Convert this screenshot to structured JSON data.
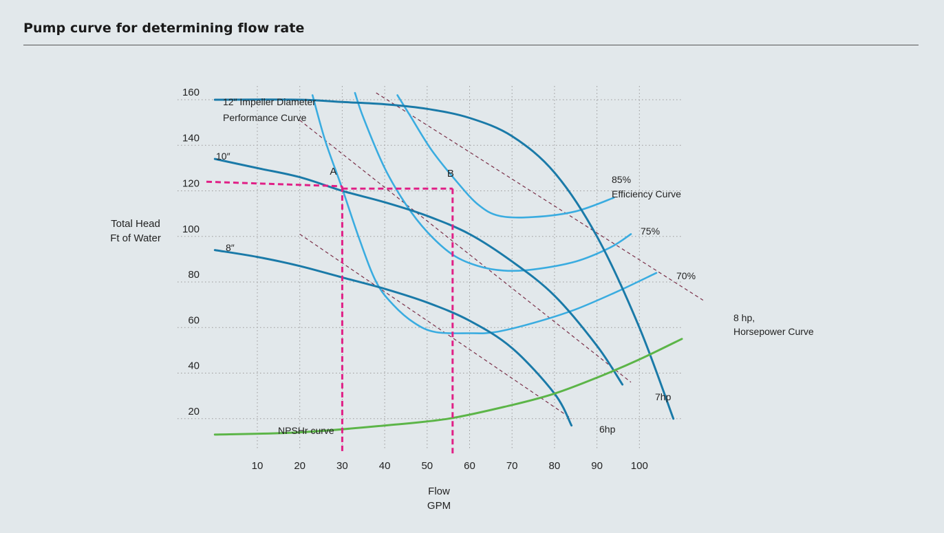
{
  "header": {
    "title": "Pump curve for determining flow rate"
  },
  "chart_data": {
    "type": "line",
    "xlabel": [
      "Flow",
      "GPM"
    ],
    "ylabel": [
      "Total Head",
      "Ft of Water"
    ],
    "xlim": [
      0,
      110
    ],
    "ylim": [
      10,
      165
    ],
    "xticks": [
      10,
      20,
      30,
      40,
      50,
      60,
      70,
      80,
      90,
      100
    ],
    "yticks": [
      20,
      40,
      60,
      80,
      100,
      120,
      140,
      160
    ],
    "grid": true,
    "colors": {
      "impeller": "#1a7aa8",
      "efficiency": "#3aace0",
      "horsepower": "#7a2f48",
      "npsh": "#5cb548",
      "operating": "#e01f86",
      "grid": "#999999"
    },
    "impeller_curves": [
      {
        "label": "12″ Impeller Diameter",
        "label2": "Performance Curve",
        "points": [
          [
            0,
            160
          ],
          [
            20,
            160
          ],
          [
            30,
            159
          ],
          [
            40,
            158
          ],
          [
            50,
            156
          ],
          [
            60,
            152
          ],
          [
            70,
            144
          ],
          [
            80,
            128
          ],
          [
            90,
            100
          ],
          [
            100,
            60
          ],
          [
            108,
            20
          ]
        ]
      },
      {
        "label": "10″",
        "points": [
          [
            0,
            134
          ],
          [
            10,
            130
          ],
          [
            20,
            126
          ],
          [
            30,
            120
          ],
          [
            40,
            115
          ],
          [
            50,
            109
          ],
          [
            60,
            101
          ],
          [
            70,
            89
          ],
          [
            80,
            74
          ],
          [
            90,
            52
          ],
          [
            96,
            35
          ]
        ]
      },
      {
        "label": "8″",
        "points": [
          [
            0,
            94
          ],
          [
            10,
            91
          ],
          [
            20,
            87
          ],
          [
            30,
            82
          ],
          [
            40,
            77
          ],
          [
            50,
            71
          ],
          [
            60,
            63
          ],
          [
            70,
            51
          ],
          [
            80,
            31
          ],
          [
            84,
            17
          ]
        ]
      }
    ],
    "efficiency_curves": [
      {
        "label": "",
        "points": [
          [
            23,
            162
          ],
          [
            26,
            142
          ],
          [
            30,
            121
          ],
          [
            34,
            99
          ],
          [
            38,
            80
          ],
          [
            42,
            70
          ],
          [
            47,
            62
          ],
          [
            52,
            58
          ],
          [
            60,
            57.5
          ],
          [
            66,
            58
          ],
          [
            75,
            62
          ],
          [
            85,
            68
          ],
          [
            95,
            76
          ],
          [
            104,
            84
          ]
        ]
      },
      {
        "label": "75%",
        "points": [
          [
            33,
            163
          ],
          [
            35,
            152
          ],
          [
            40,
            130
          ],
          [
            45,
            114
          ],
          [
            50,
            102
          ],
          [
            56,
            92
          ],
          [
            62,
            87
          ],
          [
            68,
            85
          ],
          [
            75,
            85.5
          ],
          [
            85,
            89
          ],
          [
            93,
            95
          ],
          [
            98,
            101
          ]
        ]
      },
      {
        "label": "85%",
        "points": [
          [
            43,
            162
          ],
          [
            46,
            153
          ],
          [
            51,
            138
          ],
          [
            57,
            124
          ],
          [
            62,
            114
          ],
          [
            67,
            109
          ],
          [
            75,
            108.5
          ],
          [
            85,
            111
          ],
          [
            94,
            117
          ]
        ]
      }
    ],
    "horsepower_lines": [
      {
        "label": "6hp",
        "points": [
          [
            20,
            101
          ],
          [
            84,
            20
          ]
        ]
      },
      {
        "label": "7hp",
        "points": [
          [
            20,
            151
          ],
          [
            98,
            36
          ]
        ]
      },
      {
        "label": "8 hp,",
        "label2": "Horsepower Curve",
        "points": [
          [
            38,
            163
          ],
          [
            115,
            72
          ]
        ]
      }
    ],
    "npsh_curve": {
      "label": "NPSHr curve",
      "points": [
        [
          0,
          13
        ],
        [
          20,
          14
        ],
        [
          40,
          17
        ],
        [
          55,
          20
        ],
        [
          70,
          26
        ],
        [
          80,
          31
        ],
        [
          90,
          38
        ],
        [
          100,
          46
        ],
        [
          110,
          55
        ]
      ]
    },
    "operating_points": [
      {
        "label": "A",
        "flow": 30,
        "head": 122,
        "x_from": -2
      },
      {
        "label": "B",
        "flow": 56,
        "head": 121,
        "x_from": 30
      }
    ],
    "annotations": [
      {
        "text": "70%"
      },
      {
        "text": "Efficiency Curve"
      }
    ]
  }
}
